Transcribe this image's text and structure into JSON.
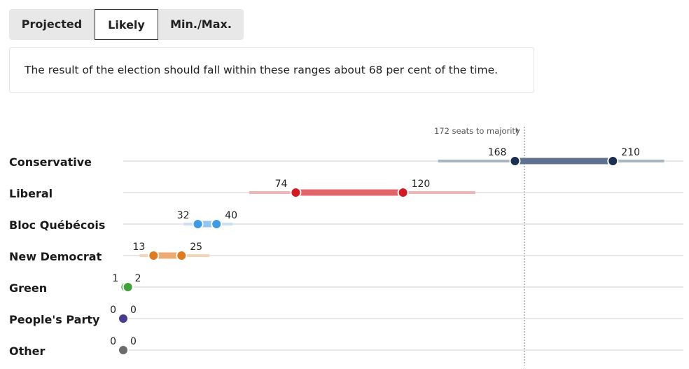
{
  "tabs": [
    {
      "label": "Projected",
      "active": false
    },
    {
      "label": "Likely",
      "active": true
    },
    {
      "label": "Min./Max.",
      "active": false
    }
  ],
  "note": "The result of the election should fall within these ranges about 68 per cent of the time.",
  "chart_data": {
    "type": "range",
    "majority_label": "172 seats to majority",
    "majority_value": 172,
    "xlim": [
      0,
      231
    ],
    "grid": "horizontal rules per party",
    "parties": [
      {
        "name": "Conservative",
        "min": 168,
        "max": 210,
        "outer_min": 135,
        "outer_max": 232,
        "color": "#1b2f4e",
        "band_color": "#5d7290",
        "outer_color": "#a9b5c1"
      },
      {
        "name": "Liberal",
        "min": 74,
        "max": 120,
        "outer_min": 54,
        "outer_max": 151,
        "color": "#d71921",
        "band_color": "#e26468",
        "outer_color": "#f0b5b7"
      },
      {
        "name": "Bloc Québécois",
        "min": 32,
        "max": 40,
        "outer_min": 26,
        "outer_max": 47,
        "color": "#3f9be6",
        "band_color": "#95c6ee",
        "outer_color": "#c8e1f6"
      },
      {
        "name": "New Democrat",
        "min": 13,
        "max": 25,
        "outer_min": 7,
        "outer_max": 37,
        "color": "#e07a1f",
        "band_color": "#ecab72",
        "outer_color": "#f7d6b8"
      },
      {
        "name": "Green",
        "min": 1,
        "max": 2,
        "outer_min": 0,
        "outer_max": 3,
        "color": "#3fa33a",
        "band_color": "#8fcb8b",
        "outer_color": "#c9e6c6"
      },
      {
        "name": "People's Party",
        "min": 0,
        "max": 0,
        "outer_min": 0,
        "outer_max": 0,
        "color": "#4a3b8f",
        "band_color": "#4a3b8f",
        "outer_color": "#4a3b8f"
      },
      {
        "name": "Other",
        "min": 0,
        "max": 0,
        "outer_min": 0,
        "outer_max": 0,
        "color": "#6b6b6b",
        "band_color": "#6b6b6b",
        "outer_color": "#6b6b6b"
      }
    ]
  }
}
